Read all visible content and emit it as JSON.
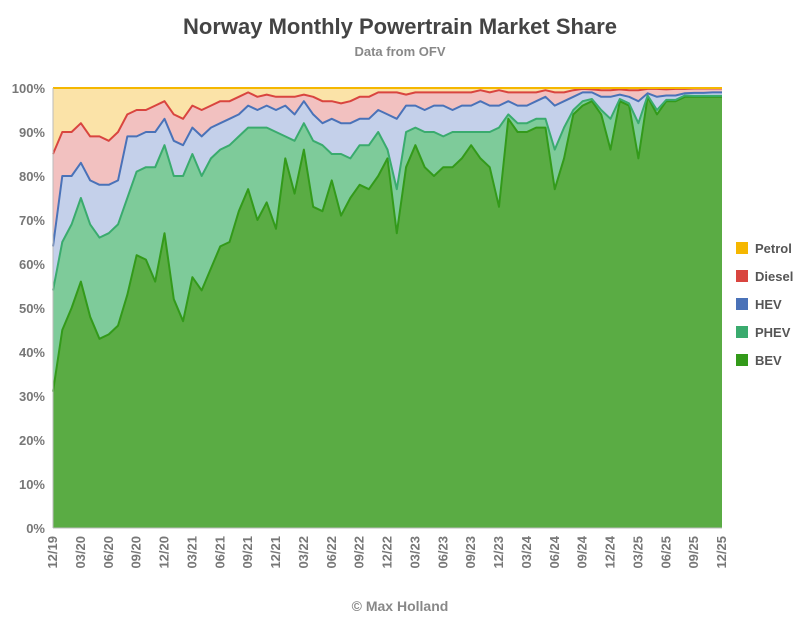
{
  "chart_data": {
    "type": "area",
    "stacked": true,
    "title": "Norway Monthly Powertrain Market Share",
    "subtitle": "Data from OFV",
    "footer": "© Max Holland",
    "xlabel": "",
    "ylabel": "",
    "ylim": [
      0,
      100
    ],
    "y_ticks": [
      "0%",
      "10%",
      "20%",
      "30%",
      "40%",
      "50%",
      "60%",
      "70%",
      "80%",
      "90%",
      "100%"
    ],
    "x_ticks": [
      "12/19",
      "03/20",
      "06/20",
      "09/20",
      "12/20",
      "03/21",
      "06/21",
      "09/21",
      "12/21",
      "03/22",
      "06/22",
      "09/22",
      "12/22",
      "03/23",
      "06/23",
      "09/23",
      "12/23",
      "03/24",
      "06/24",
      "09/24",
      "12/24",
      "03/25",
      "06/25",
      "09/25",
      "12/25"
    ],
    "grid": true,
    "legend_position": "right",
    "months": [
      "12/19",
      "01/20",
      "02/20",
      "03/20",
      "04/20",
      "05/20",
      "06/20",
      "07/20",
      "08/20",
      "09/20",
      "10/20",
      "11/20",
      "12/20",
      "01/21",
      "02/21",
      "03/21",
      "04/21",
      "05/21",
      "06/21",
      "07/21",
      "08/21",
      "09/21",
      "10/21",
      "11/21",
      "12/21",
      "01/22",
      "02/22",
      "03/22",
      "04/22",
      "05/22",
      "06/22",
      "07/22",
      "08/22",
      "09/22",
      "10/22",
      "11/22",
      "12/22",
      "01/23",
      "02/23",
      "03/23",
      "04/23",
      "05/23",
      "06/23",
      "07/23",
      "08/23",
      "09/23",
      "10/23",
      "11/23",
      "12/23",
      "01/24",
      "02/24",
      "03/24",
      "04/24",
      "05/24",
      "06/24",
      "07/24",
      "08/24",
      "09/24",
      "10/24",
      "11/24",
      "12/24",
      "01/25",
      "02/25",
      "03/25",
      "04/25",
      "05/25",
      "06/25",
      "07/25",
      "08/25",
      "09/25",
      "10/25",
      "11/25",
      "12/25"
    ],
    "series": [
      {
        "name": "BEV",
        "color": "#339a1a",
        "fill": "#5aac44",
        "values": [
          31,
          45,
          50,
          56,
          48,
          43,
          44,
          46,
          53,
          62,
          61,
          56,
          67,
          52,
          47,
          57,
          54,
          59,
          64,
          65,
          72,
          77,
          70,
          74,
          68,
          84,
          76,
          86,
          73,
          72,
          79,
          71,
          75,
          78,
          77,
          80,
          84,
          67,
          82,
          87,
          82,
          80,
          82,
          82,
          84,
          87,
          84,
          82,
          73,
          93,
          90,
          90,
          91,
          91,
          77,
          84,
          94,
          96,
          97,
          94,
          86,
          97,
          96,
          84,
          98,
          94,
          97,
          97,
          98,
          98,
          98,
          98,
          98
        ],
        "cumulative": [
          31,
          45,
          50,
          56,
          48,
          43,
          44,
          46,
          53,
          62,
          61,
          56,
          67,
          52,
          47,
          57,
          54,
          59,
          64,
          65,
          72,
          77,
          70,
          74,
          68,
          84,
          76,
          86,
          73,
          72,
          79,
          71,
          75,
          78,
          77,
          80,
          84,
          67,
          82,
          87,
          82,
          80,
          82,
          82,
          84,
          87,
          84,
          82,
          73,
          93,
          90,
          90,
          91,
          91,
          77,
          84,
          94,
          96,
          97,
          94,
          86,
          97,
          96,
          84,
          98,
          94,
          97,
          97,
          98,
          98,
          98,
          98,
          98
        ]
      },
      {
        "name": "PHEV",
        "color": "#3aab6e",
        "fill": "#7ecb9a",
        "values": [
          23,
          20,
          19,
          19,
          21,
          23,
          23,
          23,
          22,
          19,
          21,
          26,
          20,
          28,
          33,
          28,
          26,
          25,
          22,
          22,
          17,
          14,
          21,
          17,
          22,
          5,
          12,
          6,
          15,
          15,
          6,
          14,
          9,
          9,
          10,
          10,
          2,
          10,
          8,
          4,
          8,
          10,
          7,
          8,
          6,
          3,
          6,
          8,
          18,
          1,
          2,
          2,
          2,
          2,
          9,
          7,
          1,
          1,
          0.5,
          1,
          7,
          0.5,
          0.5,
          8,
          0.3,
          1,
          0.3,
          0.3,
          0.3,
          0.2,
          0.2,
          0.2,
          0.2
        ],
        "cumulative": [
          54,
          65,
          69,
          75,
          69,
          66,
          67,
          69,
          75,
          81,
          82,
          82,
          87,
          80,
          80,
          85,
          80,
          84,
          86,
          87,
          89,
          91,
          91,
          91,
          90,
          89,
          88,
          92,
          88,
          87,
          85,
          85,
          84,
          87,
          87,
          90,
          86,
          77,
          90,
          91,
          90,
          90,
          89,
          90,
          90,
          90,
          90,
          90,
          91,
          94,
          92,
          92,
          93,
          93,
          86,
          91,
          95,
          97,
          97.5,
          95,
          93,
          97.5,
          96.5,
          92,
          98.3,
          95,
          97.3,
          97.3,
          98.3,
          98.2,
          98.2,
          98.2,
          98.2
        ]
      },
      {
        "name": "HEV",
        "color": "#4a72b8",
        "fill": "#c4d0ea",
        "values": [
          10,
          15,
          11,
          8,
          10,
          12,
          11,
          10,
          14,
          8,
          8,
          8,
          6,
          8,
          7,
          6,
          9,
          7,
          6,
          6,
          5,
          5,
          4,
          5,
          5,
          7,
          6,
          5,
          6,
          5,
          8,
          7,
          8,
          6,
          6,
          5,
          8,
          16,
          6,
          5,
          5,
          6,
          7,
          5,
          6,
          6,
          7,
          6,
          5,
          3,
          4,
          4,
          4,
          5,
          10,
          6,
          3,
          2,
          1.5,
          3,
          5,
          1,
          1.5,
          5,
          0.5,
          3,
          1,
          1,
          0.5,
          0.7,
          0.7,
          0.8,
          0.8
        ],
        "cumulative": [
          64,
          80,
          80,
          83,
          79,
          78,
          78,
          79,
          89,
          89,
          90,
          90,
          93,
          88,
          87,
          91,
          89,
          91,
          92,
          93,
          94,
          96,
          95,
          96,
          95,
          96,
          94,
          97,
          94,
          92,
          93,
          92,
          92,
          93,
          93,
          95,
          94,
          93,
          96,
          96,
          95,
          96,
          96,
          95,
          96,
          96,
          97,
          96,
          96,
          97,
          96,
          96,
          97,
          98,
          96,
          97,
          98,
          99,
          99,
          98,
          98,
          98.5,
          98,
          97,
          98.8,
          98,
          98.3,
          98.3,
          98.8,
          98.9,
          98.9,
          99,
          99
        ]
      },
      {
        "name": "Diesel",
        "color": "#d9453f",
        "fill": "#f2c1c0",
        "values": [
          21,
          10,
          10,
          9,
          10,
          11,
          10,
          11,
          5,
          6,
          5,
          6,
          4,
          6,
          6,
          5,
          6,
          5,
          5,
          4,
          4,
          3,
          3,
          2.5,
          3,
          2,
          4,
          1.5,
          4,
          5,
          4,
          4.5,
          5,
          5,
          5,
          4,
          5,
          6,
          2.5,
          3,
          4,
          3,
          3,
          4,
          3,
          3,
          2.5,
          3,
          3.5,
          2,
          3,
          3,
          2,
          1.5,
          3,
          2,
          1.5,
          0.8,
          0.7,
          1.5,
          1.5,
          1.2,
          1.5,
          2.5,
          1,
          1.8,
          1.4,
          1.5,
          1,
          1,
          1,
          0.9,
          0.9
        ],
        "cumulative": [
          85,
          90,
          90,
          92,
          89,
          89,
          88,
          90,
          94,
          95,
          95,
          96,
          97,
          94,
          93,
          96,
          95,
          96,
          97,
          97,
          98,
          99,
          98,
          98.5,
          98,
          98,
          98,
          98.5,
          98,
          97,
          97,
          96.5,
          97,
          98,
          98,
          99,
          99,
          99,
          98.5,
          99,
          99,
          99,
          99,
          99,
          99,
          99,
          99.5,
          99,
          99.5,
          99,
          99,
          99,
          99,
          99.5,
          99,
          99,
          99.5,
          99.8,
          99.7,
          99.5,
          99.5,
          99.7,
          99.5,
          99.5,
          99.8,
          99.8,
          99.7,
          99.8,
          99.8,
          99.9,
          99.9,
          99.9,
          99.9
        ]
      },
      {
        "name": "Petrol",
        "color": "#f5b700",
        "fill": "#fbe3a8",
        "values": [
          15,
          10,
          10,
          8,
          11,
          11,
          12,
          10,
          6,
          5,
          5,
          4,
          3,
          6,
          7,
          4,
          5,
          4,
          3,
          3,
          2,
          1,
          2,
          1.5,
          2,
          2,
          2,
          1.5,
          2,
          3,
          3,
          3.5,
          3,
          2,
          2,
          1,
          1,
          1,
          1.5,
          1,
          1,
          1,
          1,
          1,
          1,
          1,
          0.5,
          1,
          0.5,
          1,
          1,
          1,
          1,
          0.5,
          1,
          1,
          0.5,
          0.2,
          0.3,
          0.5,
          0.5,
          0.3,
          0.5,
          0.5,
          0.2,
          0.2,
          0.3,
          0.2,
          0.2,
          0.1,
          0.1,
          0.1,
          0.1
        ],
        "cumulative": [
          100,
          100,
          100,
          100,
          100,
          100,
          100,
          100,
          100,
          100,
          100,
          100,
          100,
          100,
          100,
          100,
          100,
          100,
          100,
          100,
          100,
          100,
          100,
          100,
          100,
          100,
          100,
          100,
          100,
          100,
          100,
          100,
          100,
          100,
          100,
          100,
          100,
          100,
          100,
          100,
          100,
          100,
          100,
          100,
          100,
          100,
          100,
          100,
          100,
          100,
          100,
          100,
          100,
          100,
          100,
          100,
          100,
          100,
          100,
          100,
          100,
          100,
          100,
          100,
          100,
          100,
          100,
          100,
          100,
          100,
          100,
          100,
          100
        ]
      }
    ]
  }
}
